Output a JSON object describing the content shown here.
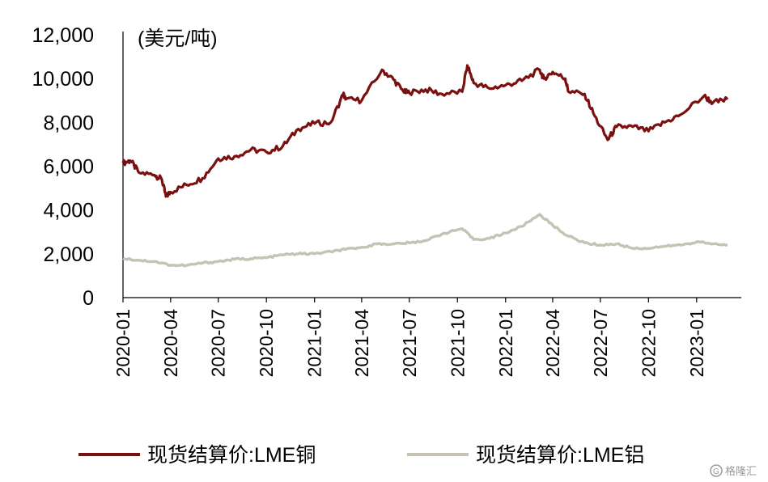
{
  "chart_data": {
    "type": "line",
    "unit_label": "(美元/吨)",
    "ylim": [
      0,
      12000
    ],
    "y_ticks": [
      "12,000",
      "10,000",
      "8,000",
      "6,000",
      "4,000",
      "2,000",
      "0"
    ],
    "x_ticks": [
      "2020-01",
      "2020-04",
      "2020-07",
      "2020-10",
      "2021-01",
      "2021-04",
      "2021-07",
      "2021-10",
      "2022-01",
      "2022-04",
      "2022-07",
      "2022-10",
      "2023-01"
    ],
    "x_range": [
      "2020-01",
      "2023-03"
    ],
    "legend_position": "bottom",
    "grid": false,
    "series": [
      {
        "name": "现货结算价:LME铜",
        "color": "#7a1010",
        "points": [
          [
            "2020-01",
            6150
          ],
          [
            "2020-01-15",
            6250
          ],
          [
            "2020-02",
            5700
          ],
          [
            "2020-03",
            5600
          ],
          [
            "2020-03-15",
            5400
          ],
          [
            "2020-03-23",
            4620
          ],
          [
            "2020-04",
            4820
          ],
          [
            "2020-05",
            5150
          ],
          [
            "2020-06",
            5450
          ],
          [
            "2020-07",
            6350
          ],
          [
            "2020-08",
            6450
          ],
          [
            "2020-09",
            6750
          ],
          [
            "2020-10",
            6650
          ],
          [
            "2020-11",
            6900
          ],
          [
            "2020-12",
            7700
          ],
          [
            "2021-01",
            7950
          ],
          [
            "2021-02",
            8000
          ],
          [
            "2021-02-25",
            9300
          ],
          [
            "2021-03",
            9050
          ],
          [
            "2021-04",
            9000
          ],
          [
            "2021-05-10",
            10400
          ],
          [
            "2021-06",
            9950
          ],
          [
            "2021-06-20",
            9400
          ],
          [
            "2021-07",
            9350
          ],
          [
            "2021-08",
            9500
          ],
          [
            "2021-09",
            9300
          ],
          [
            "2021-10-10",
            9400
          ],
          [
            "2021-10-20",
            10600
          ],
          [
            "2021-11",
            9800
          ],
          [
            "2021-12",
            9550
          ],
          [
            "2022-01",
            9700
          ],
          [
            "2022-02",
            9900
          ],
          [
            "2022-03-07",
            10400
          ],
          [
            "2022-03-15",
            10000
          ],
          [
            "2022-04",
            10300
          ],
          [
            "2022-04-25",
            10000
          ],
          [
            "2022-05",
            9400
          ],
          [
            "2022-06",
            9300
          ],
          [
            "2022-06-20",
            8300
          ],
          [
            "2022-07-15",
            7200
          ],
          [
            "2022-08",
            7800
          ],
          [
            "2022-09",
            7800
          ],
          [
            "2022-10",
            7600
          ],
          [
            "2022-11",
            8000
          ],
          [
            "2022-12",
            8350
          ],
          [
            "2023-01-15",
            9200
          ],
          [
            "2023-02",
            8900
          ],
          [
            "2023-03",
            9050
          ]
        ]
      },
      {
        "name": "现货结算价:LME铝",
        "color": "#c6c2b4",
        "points": [
          [
            "2020-01",
            1800
          ],
          [
            "2020-02",
            1700
          ],
          [
            "2020-03",
            1650
          ],
          [
            "2020-04",
            1480
          ],
          [
            "2020-05",
            1470
          ],
          [
            "2020-06",
            1580
          ],
          [
            "2020-07",
            1650
          ],
          [
            "2020-08",
            1750
          ],
          [
            "2020-09",
            1780
          ],
          [
            "2020-10",
            1820
          ],
          [
            "2020-11",
            1950
          ],
          [
            "2020-12",
            2000
          ],
          [
            "2021-01",
            2000
          ],
          [
            "2021-02",
            2100
          ],
          [
            "2021-03",
            2200
          ],
          [
            "2021-04",
            2300
          ],
          [
            "2021-05",
            2450
          ],
          [
            "2021-06",
            2450
          ],
          [
            "2021-07",
            2500
          ],
          [
            "2021-08",
            2600
          ],
          [
            "2021-09",
            2900
          ],
          [
            "2021-10-10",
            3150
          ],
          [
            "2021-11",
            2650
          ],
          [
            "2021-12",
            2700
          ],
          [
            "2022-01",
            2950
          ],
          [
            "2022-02",
            3250
          ],
          [
            "2022-03-07",
            3800
          ],
          [
            "2022-04",
            3300
          ],
          [
            "2022-05",
            2800
          ],
          [
            "2022-06",
            2500
          ],
          [
            "2022-07",
            2400
          ],
          [
            "2022-08",
            2450
          ],
          [
            "2022-09",
            2250
          ],
          [
            "2022-10",
            2250
          ],
          [
            "2022-11",
            2350
          ],
          [
            "2022-12",
            2400
          ],
          [
            "2023-01",
            2550
          ],
          [
            "2023-02",
            2450
          ],
          [
            "2023-03",
            2400
          ]
        ]
      }
    ]
  },
  "watermark": "格隆汇",
  "watermark_icon": "g-circle-logo-icon"
}
